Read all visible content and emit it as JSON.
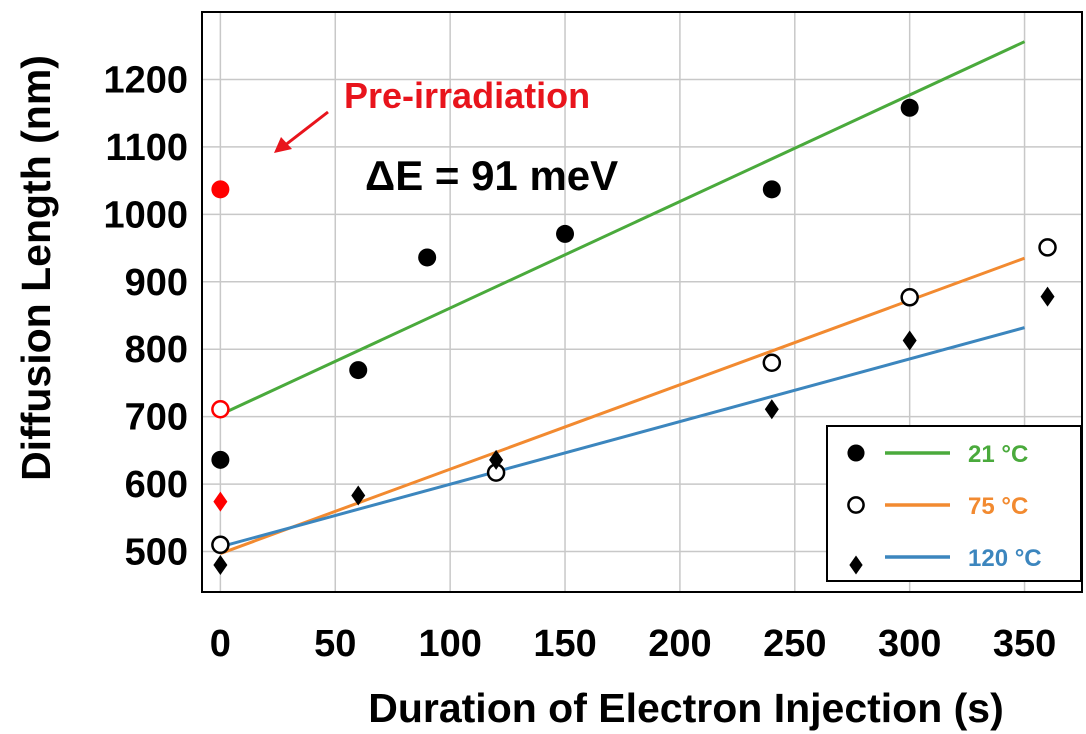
{
  "chart_data": {
    "type": "scatter",
    "title": "",
    "xlabel": "Duration of Electron Injection (s)",
    "ylabel": "Diffusion Length (nm)",
    "xlim": [
      -8,
      375
    ],
    "ylim": [
      440,
      1300
    ],
    "xticks": [
      0,
      50,
      100,
      150,
      200,
      250,
      300,
      350
    ],
    "yticks": [
      500,
      600,
      700,
      800,
      900,
      1000,
      1100,
      1200
    ],
    "xtick_labels": [
      "0",
      "50",
      "100",
      "150",
      "200",
      "250",
      "300",
      "350"
    ],
    "ytick_labels": [
      "500",
      "600",
      "700",
      "800",
      "900",
      "1000",
      "1100",
      "1200"
    ],
    "grid": true,
    "legend_position": "bottom-right",
    "series": [
      {
        "name": "21 °C",
        "marker": "filled-circle",
        "marker_color": "#000000",
        "line_color": "#4aaa3c",
        "points": [
          [
            0,
            636
          ],
          [
            60,
            769
          ],
          [
            90,
            936
          ],
          [
            150,
            971
          ],
          [
            240,
            1037
          ],
          [
            300,
            1158
          ]
        ],
        "fit": [
          [
            0,
            703
          ],
          [
            350,
            1256
          ]
        ]
      },
      {
        "name": "75 °C",
        "marker": "open-circle",
        "marker_color": "#000000",
        "line_color": "#f28a30",
        "points": [
          [
            0,
            510
          ],
          [
            120,
            617
          ],
          [
            240,
            780
          ],
          [
            300,
            877
          ],
          [
            360,
            951
          ]
        ],
        "fit": [
          [
            0,
            497
          ],
          [
            350,
            935
          ]
        ]
      },
      {
        "name": "120 °C",
        "marker": "diamond",
        "marker_color": "#000000",
        "line_color": "#3c86be",
        "points": [
          [
            0,
            480
          ],
          [
            60,
            583
          ],
          [
            120,
            636
          ],
          [
            240,
            711
          ],
          [
            300,
            813
          ],
          [
            360,
            878
          ]
        ],
        "fit": [
          [
            0,
            507
          ],
          [
            350,
            832
          ]
        ]
      }
    ],
    "pre_irradiation_points": [
      {
        "series": "21 °C",
        "marker": "filled-circle",
        "x": 0,
        "y": 1037,
        "color": "#ff0000"
      },
      {
        "series": "75 °C",
        "marker": "open-circle",
        "x": 0,
        "y": 711,
        "color": "#ff0000"
      },
      {
        "series": "120 °C",
        "marker": "diamond",
        "x": 0,
        "y": 574,
        "color": "#ff0000"
      }
    ],
    "annotations": {
      "pre_irradiation": "Pre-irradiation",
      "pre_irradiation_color": "#e8141c",
      "delta_e": "ΔE = 91 meV"
    }
  }
}
